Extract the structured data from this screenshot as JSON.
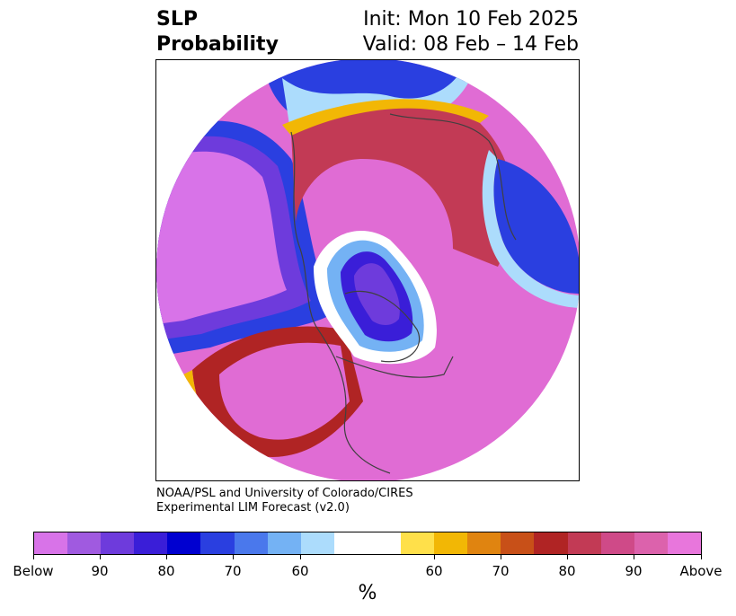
{
  "title": {
    "variable": "SLP",
    "quantity": "Probability",
    "init": "Init: Mon 10 Feb 2025",
    "valid": "Valid: 08 Feb – 14 Feb"
  },
  "credit": {
    "line1": "NOAA/PSL and University of Colorado/CIRES",
    "line2": "Experimental LIM Forecast (v2.0)"
  },
  "colorbar": {
    "colors": [
      "#d873e8",
      "#a05ae0",
      "#6e3bdc",
      "#3a1ed8",
      "#0000d0",
      "#2a3fe0",
      "#4a78ec",
      "#74b2f4",
      "#acdcfc",
      "#ffffff",
      "#ffe04a",
      "#f2b705",
      "#e08410",
      "#c85018",
      "#b02424",
      "#c23a55",
      "#cf4a88",
      "#dc62ac",
      "#e876dc"
    ],
    "labels": [
      "Below",
      "90",
      "80",
      "70",
      "60",
      "60",
      "70",
      "80",
      "90",
      "Above"
    ],
    "unit": "%"
  },
  "map": {
    "projection": "north-polar-stereographic",
    "below_color": "#d873e8",
    "above_color": "#e876dc",
    "coastline_color": "#404040"
  }
}
